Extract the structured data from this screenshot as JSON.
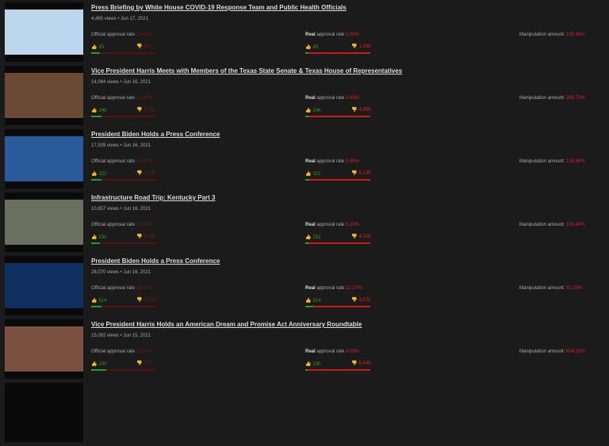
{
  "labels": {
    "official": "Official approval rate",
    "real_bold": "Real",
    "real_rest": "approval rate",
    "manipulation": "Manipulation amount:"
  },
  "videos": [
    {
      "title": "Press Briefing by White House COVID-19 Response Team and Public Health Officials",
      "meta": "4,465 views • Jun 17, 2021",
      "official_rate": "13.60%",
      "likes": "85",
      "official_dislikes": "540",
      "real_rate": "5.05%",
      "real_dislikes": "1,596",
      "manipulation": "195.56%",
      "thumb": "#bcd6ee"
    },
    {
      "title": "Vice President Harris Meets with Members of the Texas State Senate & Texas House of Representatives",
      "meta": "14,064 views • Jun 16, 2021",
      "official_rate": "15.40%",
      "likes": "246",
      "official_dislikes": "1,351",
      "real_rate": "4.69%",
      "real_dislikes": "4,995",
      "manipulation": "269.73%",
      "thumb": "#6b4a35"
    },
    {
      "title": "President Biden Holds a Press Conference",
      "meta": "17,539 views • Jun 16, 2021",
      "official_rate": "15.60%",
      "likes": "322",
      "official_dislikes": "1,742",
      "real_rate": "5.89%",
      "real_dislikes": "5,139",
      "manipulation": "196.88%",
      "thumb": "#2a5a9a"
    },
    {
      "title": "Infrastructure Road Trip: Kentucky Part 3",
      "meta": "10,857 views • Jun 16, 2021",
      "official_rate": "13.67%",
      "likes": "232",
      "official_dislikes": "1,465",
      "real_rate": "5.20%",
      "real_dislikes": "4,229",
      "manipulation": "193.48%",
      "thumb": "#6a7060"
    },
    {
      "title": "President Biden Holds a Press Conference",
      "meta": "28,070 views • Jun 16, 2021",
      "official_rate": "16.40%",
      "likes": "514",
      "official_dislikes": "2,620",
      "real_rate": "12.27%",
      "real_dislikes": "3,671",
      "manipulation": "61.29%",
      "thumb": "#0f2f60"
    },
    {
      "title": "Vice President Harris Holds an American Dream and Promise Act Anniversary Roundtable",
      "meta": "15,092 views • Jun 15, 2021",
      "official_rate": "22.93%",
      "likes": "230",
      "official_dislikes": "773",
      "real_rate": "4.05%",
      "real_dislikes": "5,446",
      "manipulation": "604.53%",
      "thumb": "#7a5040"
    }
  ],
  "official_fraction": [
    0.136,
    0.154,
    0.156,
    0.1367,
    0.164,
    0.2293
  ],
  "real_fraction": [
    0.0505,
    0.0469,
    0.0589,
    0.052,
    0.1227,
    0.0405
  ]
}
